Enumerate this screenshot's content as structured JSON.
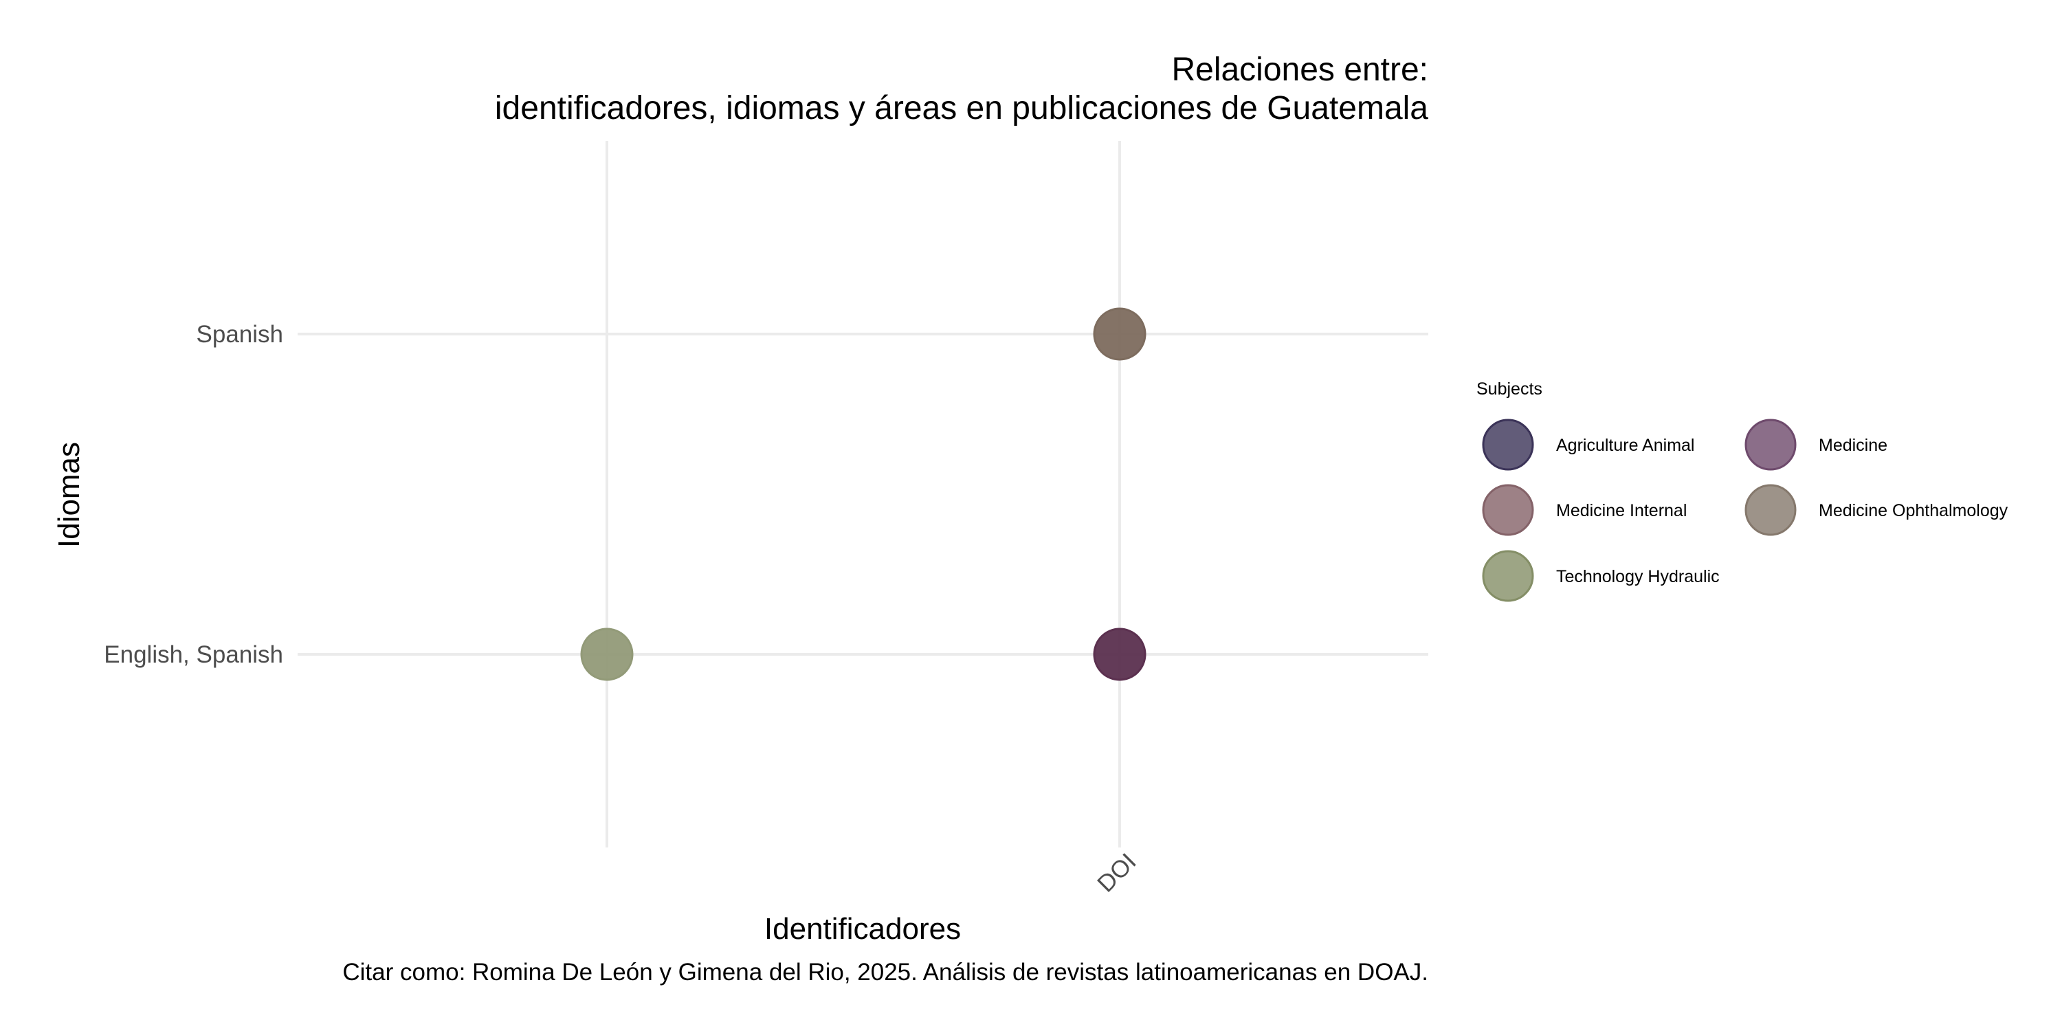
{
  "chart_data": {
    "type": "scatter",
    "title_lines": [
      "Relaciones entre:",
      "identificadores, idiomas y áreas en publicaciones de Guatemala"
    ],
    "xlabel": "Identificadores",
    "ylabel": "Idiomas",
    "x_categories": [
      "",
      "DOI"
    ],
    "y_categories": [
      "English, Spanish",
      "Spanish"
    ],
    "caption": "Citar como: Romina De León y Gimena del Rio, 2025. Análisis de revistas latinoamericanas en DOAJ.",
    "legend": {
      "title": "Subjects",
      "position": "right",
      "entries": [
        {
          "label": "Agriculture Animal",
          "color": "#3b3358"
        },
        {
          "label": "Medicine",
          "color": "#6e4a6c"
        },
        {
          "label": "Medicine Internal",
          "color": "#846268"
        },
        {
          "label": "Medicine Ophthalmology",
          "color": "#85786c"
        },
        {
          "label": "Technology Hydraulic",
          "color": "#848e66"
        }
      ]
    },
    "points": [
      {
        "x": "DOI",
        "y": "Spanish",
        "color": "#7d6c5e",
        "subjects": [
          "Medicine Ophthalmology"
        ]
      },
      {
        "x": "",
        "y": "English, Spanish",
        "color": "#929a78",
        "subjects": [
          "Technology Hydraulic"
        ]
      },
      {
        "x": "DOI",
        "y": "English, Spanish",
        "color": "#5b304f",
        "subjects": [
          "Agriculture Animal",
          "Medicine",
          "Medicine Internal"
        ]
      }
    ],
    "grid": true
  }
}
